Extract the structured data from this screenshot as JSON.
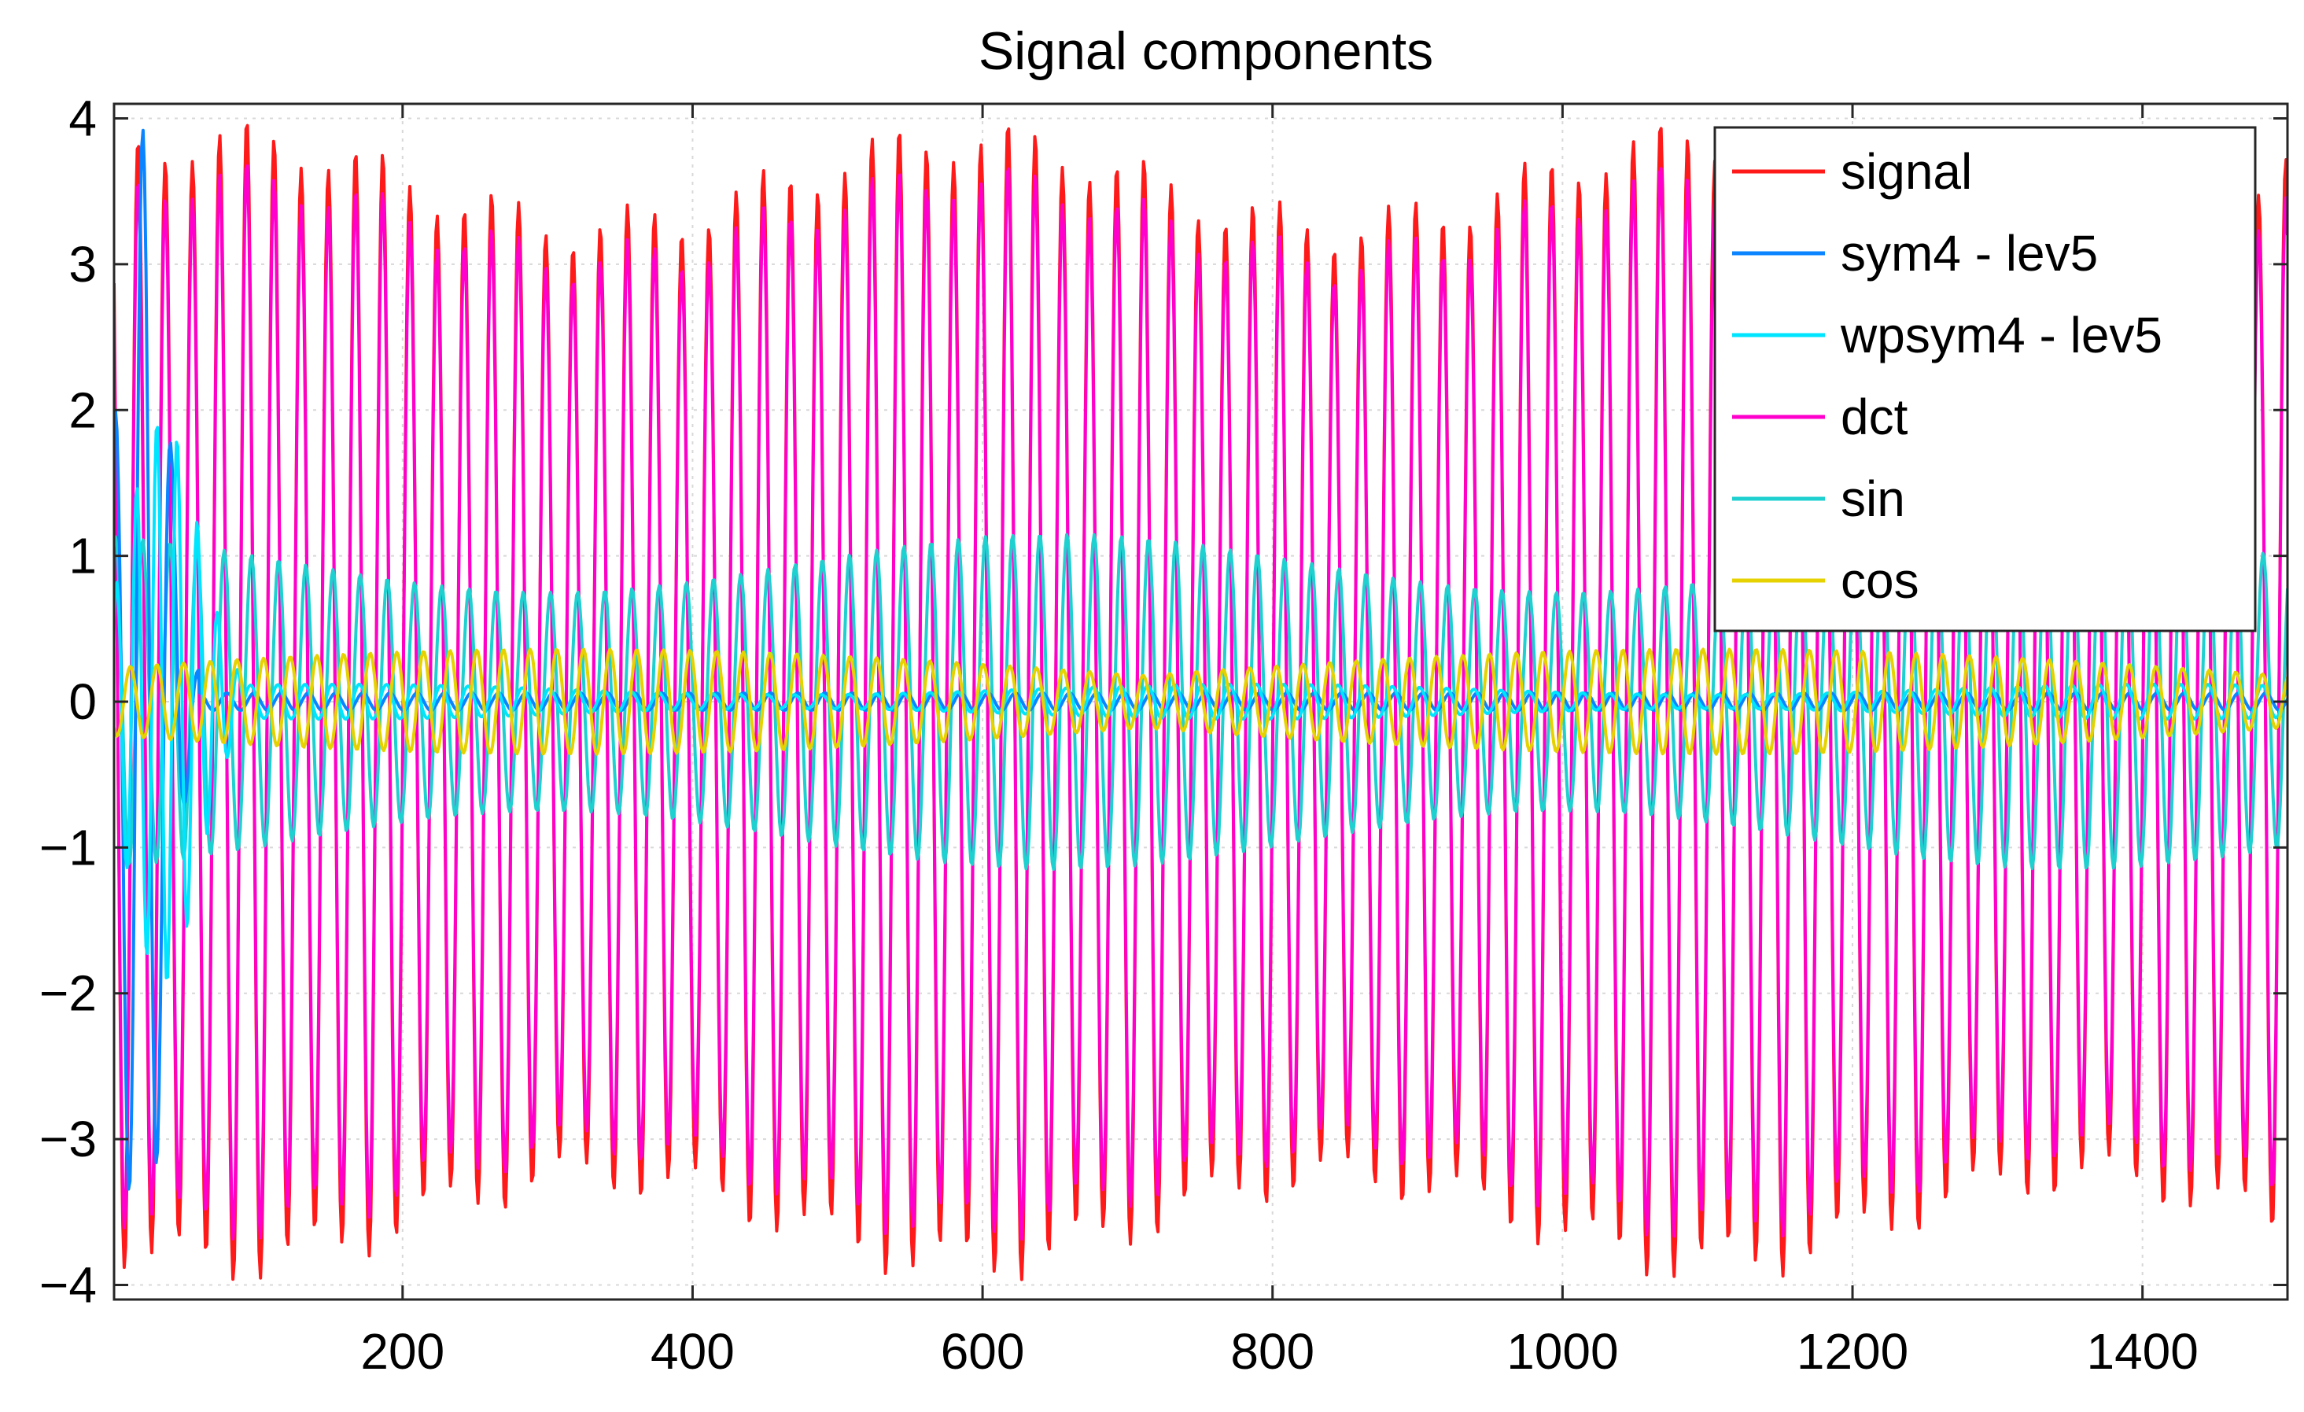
{
  "chart_data": {
    "type": "line",
    "title": "Signal components",
    "xlabel": "",
    "ylabel": "",
    "xlim": [
      1,
      1500
    ],
    "ylim": [
      -4.1,
      4.1
    ],
    "xticks": [
      200,
      400,
      600,
      800,
      1000,
      1200,
      1400
    ],
    "yticks": [
      -4,
      -3,
      -2,
      -1,
      0,
      1,
      2,
      3,
      4
    ],
    "grid": true,
    "legend": {
      "placement": "top-right",
      "entries": [
        "signal",
        "sym4 - lev5",
        "wpsym4 - lev5",
        "dct",
        "sin",
        "cos"
      ]
    },
    "series": [
      {
        "name": "signal",
        "color": "#ff1a1a",
        "description": "quasi-periodic oscillation with period about 18.75 samples, peaks between about 2.8 and 4.1, troughs between about -2.6 and -4.1",
        "approx_peak_x": [
          90,
          110,
          190,
          210,
          300,
          320,
          400,
          420,
          500,
          520,
          590,
          680,
          700,
          760,
          780,
          860,
          940,
          960,
          1040,
          1060,
          1140,
          1220,
          1300,
          1320,
          1400
        ],
        "approx_peak_y": [
          3.3,
          3.8,
          3.4,
          3.8,
          3.4,
          3.9,
          3.6,
          4.1,
          3.7,
          4.0,
          3.8,
          3.7,
          4.0,
          3.8,
          4.0,
          3.8,
          3.7,
          4.0,
          3.7,
          3.9,
          3.7,
          3.6,
          3.7,
          3.9,
          3.6
        ]
      },
      {
        "name": "sym4 - lev5",
        "color": "#0a84ff",
        "description": "large transient only near the start, reaching about 4.1 near x=30 and about -3.8 near x=40, then near zero"
      },
      {
        "name": "wpsym4 - lev5",
        "color": "#00e5ff",
        "description": "start transient up to about 2 and down to about -2.1 within the first 70 samples, then small oscillation near zero"
      },
      {
        "name": "dct",
        "color": "#ff00cc",
        "description": "closely follows the signal with slightly smaller amplitude, about +-3.3 to +-3.6"
      },
      {
        "name": "sin",
        "color": "#1fd0d0",
        "description": "oscillation of amplitude about 1, between about -1.2 and 1.2"
      },
      {
        "name": "cos",
        "color": "#e6d200",
        "description": "small oscillation of amplitude about 0.3 to 0.5 around zero"
      }
    ]
  }
}
